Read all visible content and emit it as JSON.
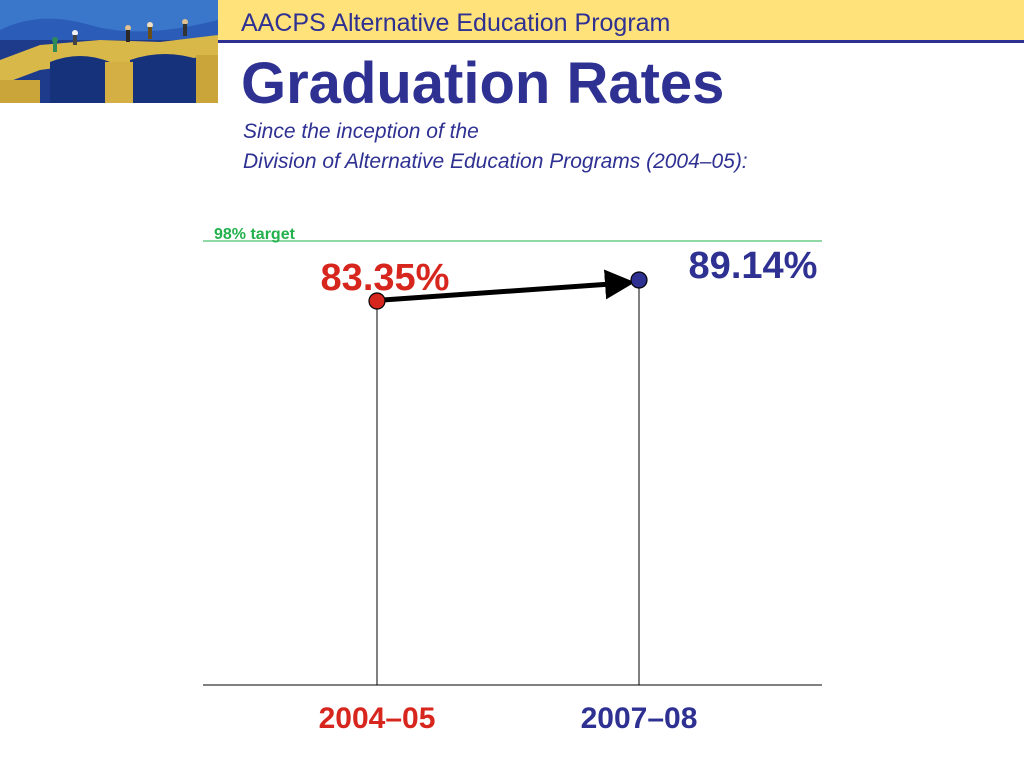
{
  "header": {
    "program_name": "AACPS Alternative Education Program",
    "title": "Graduation Rates",
    "subtitle_line1": "Since the inception of the",
    "subtitle_line2": "Division of Alternative Education Programs (2004–05):"
  },
  "logo": {
    "description_icon": "bridge-painting-icon"
  },
  "colors": {
    "title": "#2e3192",
    "header_band": "#ffe27a",
    "first_point": "#d7261e",
    "second_point": "#2e3192",
    "target_line": "#22b14c",
    "arrow": "#000000"
  },
  "chart_data": {
    "type": "line",
    "title": "",
    "xlabel": "",
    "ylabel": "",
    "categories": [
      "2004–05",
      "2007–08"
    ],
    "values": [
      83.35,
      89.14
    ],
    "value_labels": [
      "83.35%",
      "89.14%"
    ],
    "target": {
      "value": 98,
      "label": "98% target"
    },
    "grid": false,
    "legend": "none"
  }
}
